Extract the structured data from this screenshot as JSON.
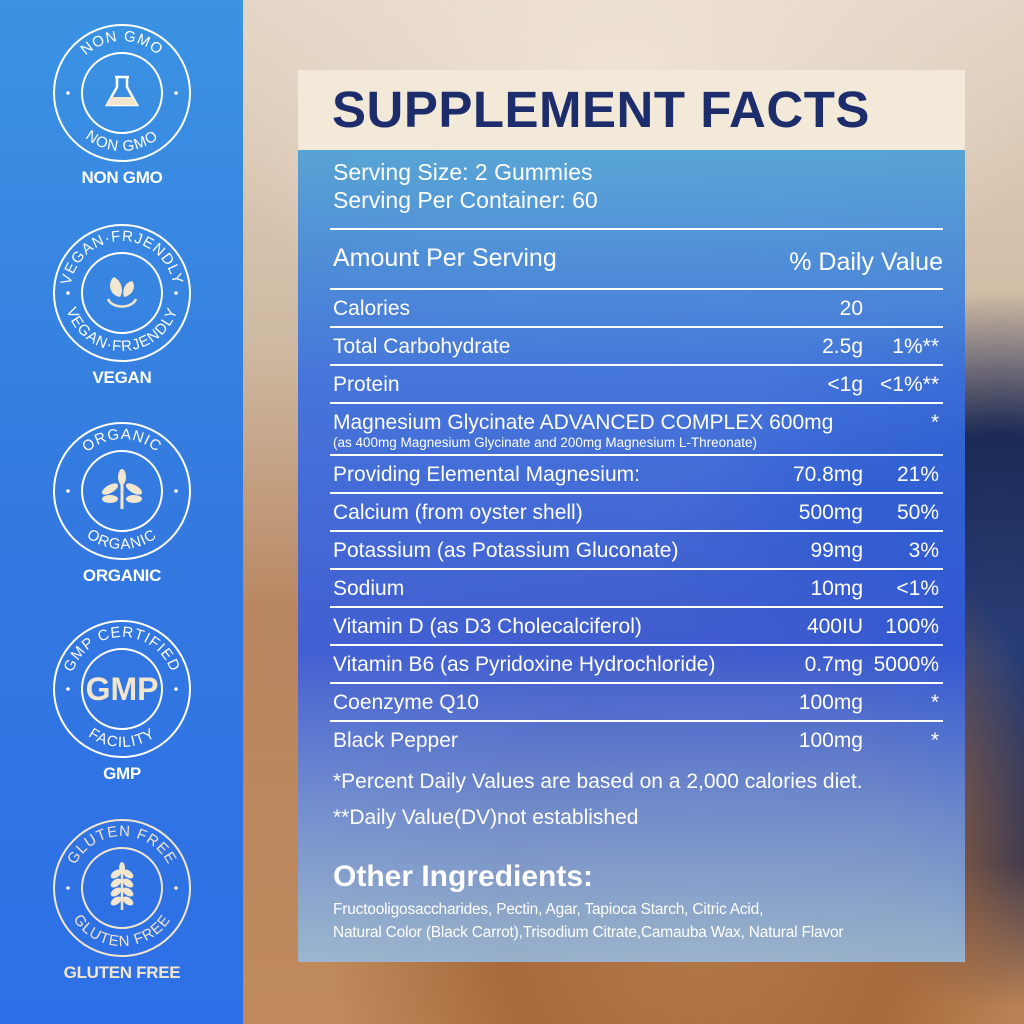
{
  "badges": [
    {
      "ring_top": "NON GMO",
      "ring_bottom": "NON GMO",
      "label": "NON GMO",
      "icon": "flask-icon"
    },
    {
      "ring_top": "VEGAN·FRJENDLY",
      "ring_bottom": "VEGAN·FRJENDLY",
      "label": "VEGAN",
      "icon": "leaves-icon"
    },
    {
      "ring_top": "ORGANIC",
      "ring_bottom": "ORGANIC",
      "label": "ORGANIC",
      "icon": "plant-icon"
    },
    {
      "ring_top": "GMP CERTIFIED",
      "ring_bottom": "FACILITY",
      "center": "GMP",
      "label": "GMP",
      "icon": "gmp-icon"
    },
    {
      "ring_top": "GLUTEN FREE",
      "ring_bottom": "GLUTEN FREE",
      "label": "GLUTEN FREE",
      "icon": "wheat-icon"
    }
  ],
  "facts": {
    "title": "SUPPLEMENT FACTS",
    "serving_size": "Serving Size: 2 Gummies",
    "servings_per_container": "Serving Per Container: 60",
    "amount_header": "Amount Per Serving",
    "dv_header": "% Daily Value",
    "rows": [
      {
        "name": "Calories",
        "amount": "20",
        "dv": ""
      },
      {
        "name": "Total Carbohydrate",
        "amount": "2.5g",
        "dv": "1%**"
      },
      {
        "name": "Protein",
        "amount": "<1g",
        "dv": "<1%**"
      },
      {
        "name": "Magnesium Glycinate ADVANCED COMPLEX 600mg",
        "sub": "(as 400mg Magnesium Glycinate and 200mg Magnesium L-Threonate)",
        "amount": "",
        "dv": "*"
      },
      {
        "name": "Providing Elemental Magnesium:",
        "amount": "70.8mg",
        "dv": "21%"
      },
      {
        "name": "Calcium (from oyster shell)",
        "amount": "500mg",
        "dv": "50%"
      },
      {
        "name": "Potassium (as Potassium Gluconate)",
        "amount": "99mg",
        "dv": "3%"
      },
      {
        "name": "Sodium",
        "amount": "10mg",
        "dv": "<1%"
      },
      {
        "name": "Vitamin D (as D3 Cholecalciferol)",
        "amount": "400IU",
        "dv": "100%"
      },
      {
        "name": "Vitamin B6 (as Pyridoxine Hydrochloride)",
        "amount": "0.7mg",
        "dv": "5000%"
      },
      {
        "name": "Coenzyme Q10",
        "amount": "100mg",
        "dv": "*"
      },
      {
        "name": "Black Pepper",
        "amount": "100mg",
        "dv": "*"
      }
    ],
    "footnote1": "*Percent Daily Values are based on a 2,000 calories diet.",
    "footnote2": "**Daily Value(DV)not established",
    "other_title": "Other Ingredients:",
    "other_line1": "Fructooligosaccharides, Pectin, Agar, Tapioca Starch, Citric Acid,",
    "other_line2": "Natural Color (Black Carrot),Trisodium Citrate,Camauba Wax, Natural Flavor"
  },
  "colors": {
    "navy": "#1d2d6b",
    "cream": "#f2e9d9",
    "sidebar": "#3479e0"
  }
}
